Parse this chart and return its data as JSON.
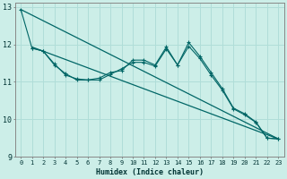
{
  "xlabel": "Humidex (Indice chaleur)",
  "bg_color": "#cceee8",
  "grid_color": "#b0ddd8",
  "line_color": "#006666",
  "xlim": [
    -0.5,
    23.5
  ],
  "ylim": [
    9,
    13.1
  ],
  "yticks": [
    9,
    10,
    11,
    12,
    13
  ],
  "xticks": [
    0,
    1,
    2,
    3,
    4,
    5,
    6,
    7,
    8,
    9,
    10,
    11,
    12,
    13,
    14,
    15,
    16,
    17,
    18,
    19,
    20,
    21,
    22,
    23
  ],
  "straight_line1": {
    "x": [
      0,
      23
    ],
    "y": [
      12.93,
      9.48
    ]
  },
  "straight_line2": {
    "x": [
      1,
      23
    ],
    "y": [
      11.93,
      9.48
    ]
  },
  "jagged1": {
    "x": [
      0,
      1,
      2,
      3,
      4,
      5,
      6,
      7,
      8,
      9,
      10,
      11,
      12,
      13,
      14,
      15,
      16,
      17,
      18,
      19,
      20,
      21,
      22,
      23
    ],
    "y": [
      12.93,
      11.9,
      11.82,
      11.45,
      11.22,
      11.05,
      11.05,
      11.1,
      11.25,
      11.3,
      11.58,
      11.58,
      11.45,
      11.93,
      11.45,
      12.05,
      11.68,
      11.25,
      10.82,
      10.3,
      10.15,
      9.93,
      9.5,
      9.48
    ]
  },
  "jagged2": {
    "x": [
      1,
      2,
      3,
      4,
      5,
      6,
      7,
      8,
      9,
      10,
      11,
      12,
      13,
      14,
      15,
      16,
      17,
      18,
      19,
      20,
      21,
      22,
      23
    ],
    "y": [
      11.9,
      11.82,
      11.48,
      11.18,
      11.08,
      11.05,
      11.05,
      11.2,
      11.35,
      11.52,
      11.52,
      11.42,
      11.88,
      11.45,
      11.95,
      11.62,
      11.18,
      10.78,
      10.28,
      10.12,
      9.92,
      9.5,
      9.48
    ]
  }
}
